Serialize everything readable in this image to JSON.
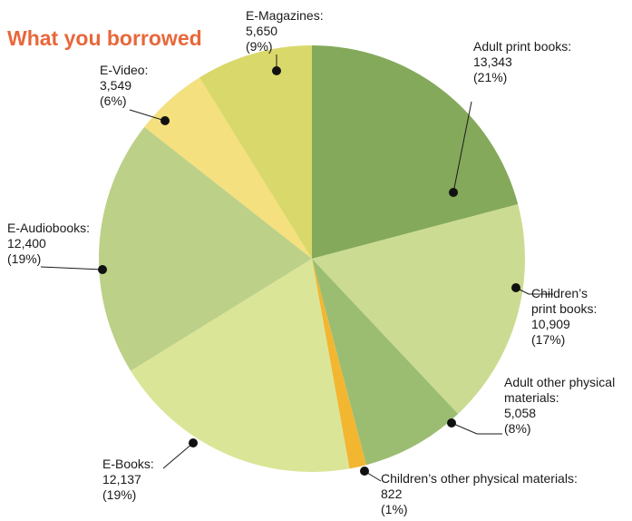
{
  "chart_data": {
    "type": "pie",
    "title": "What you borrowed",
    "title_color": "#e8673a",
    "slices": [
      {
        "label": [
          "Adult print books:"
        ],
        "value": 13343,
        "value_text": "13,343",
        "percent_text": "(21%)",
        "color": "#84a95a"
      },
      {
        "label": [
          "Children’s",
          "print books:"
        ],
        "value": 10909,
        "value_text": "10,909",
        "percent_text": "(17%)",
        "color": "#cbdb92"
      },
      {
        "label": [
          "Adult other physical",
          "materials:"
        ],
        "value": 5058,
        "value_text": "5,058",
        "percent_text": "(8%)",
        "color": "#9bbd72"
      },
      {
        "label": [
          "Children’s other physical materials:"
        ],
        "value": 822,
        "value_text": "822",
        "percent_text": "(1%)",
        "color": "#f2b631"
      },
      {
        "label": [
          "E-Books:"
        ],
        "value": 12137,
        "value_text": "12,137",
        "percent_text": "(19%)",
        "color": "#dbe597"
      },
      {
        "label": [
          "E-Audiobooks:"
        ],
        "value": 12400,
        "value_text": "12,400",
        "percent_text": "(19%)",
        "color": "#bcd088"
      },
      {
        "label": [
          "E-Video:"
        ],
        "value": 3549,
        "value_text": "3,549",
        "percent_text": "(6%)",
        "color": "#f4e07e"
      },
      {
        "label": [
          "E-Magazines:"
        ],
        "value": 5650,
        "value_text": "5,650",
        "percent_text": "(9%)",
        "color": "#d9d86b"
      }
    ]
  }
}
